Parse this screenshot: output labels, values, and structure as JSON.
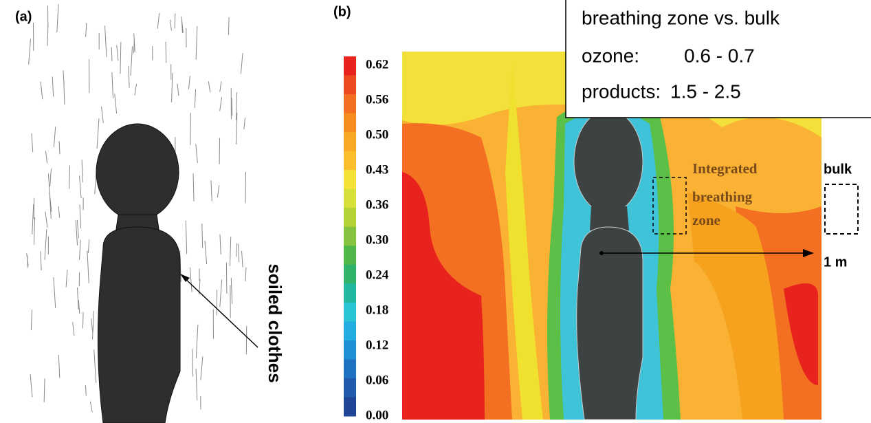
{
  "panel_a": {
    "label": "(a)",
    "annotation": "soiled clothes"
  },
  "panel_b": {
    "label": "(b)",
    "colorbar_ticks": [
      "0.62",
      "0.56",
      "0.50",
      "0.43",
      "0.36",
      "0.30",
      "0.24",
      "0.18",
      "0.12",
      "0.06",
      "0.00"
    ],
    "zone_label": [
      "Integrated",
      "breathing",
      "zone"
    ],
    "bulk_label": "bulk",
    "distance_label": "1 m"
  },
  "legend_box": {
    "title": "breathing zone vs. bulk",
    "rows": [
      {
        "name": "ozone:",
        "range": "0.6 - 0.7"
      },
      {
        "name": "products:",
        "range": "1.5 - 2.5"
      }
    ]
  }
}
